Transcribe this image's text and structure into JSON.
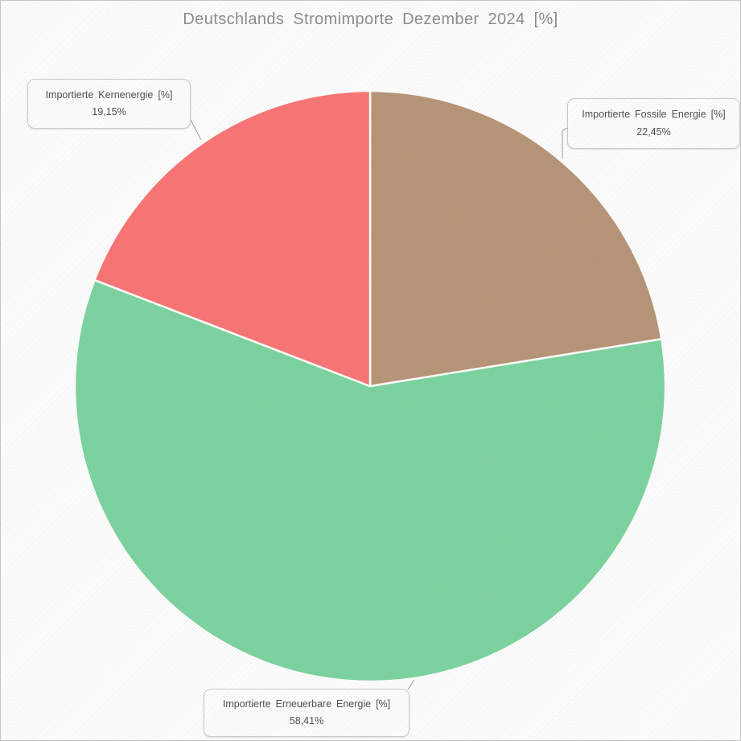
{
  "title": "Deutschlands Stromimporte Dezember 2024 [%]",
  "chart_data": {
    "type": "pie",
    "title": "Deutschlands Stromimporte Dezember 2024 [%]",
    "direction": "clockwise",
    "start_angle_deg": 0,
    "stroke_color": "#ffffff",
    "slices": [
      {
        "id": "fossile",
        "label": "Importierte Fossile Energie [%]",
        "value": 22.45,
        "display_value": "22,45%",
        "color": "#b79476"
      },
      {
        "id": "erneuerbare",
        "label": "Importierte Erneuerbare Energie [%]",
        "value": 58.41,
        "display_value": "58,41%",
        "color": "#7bd49f"
      },
      {
        "id": "kernenergie",
        "label": "Importierte Kernenergie [%]",
        "value": 19.15,
        "display_value": "19,15%",
        "color": "#fb7373"
      }
    ]
  }
}
